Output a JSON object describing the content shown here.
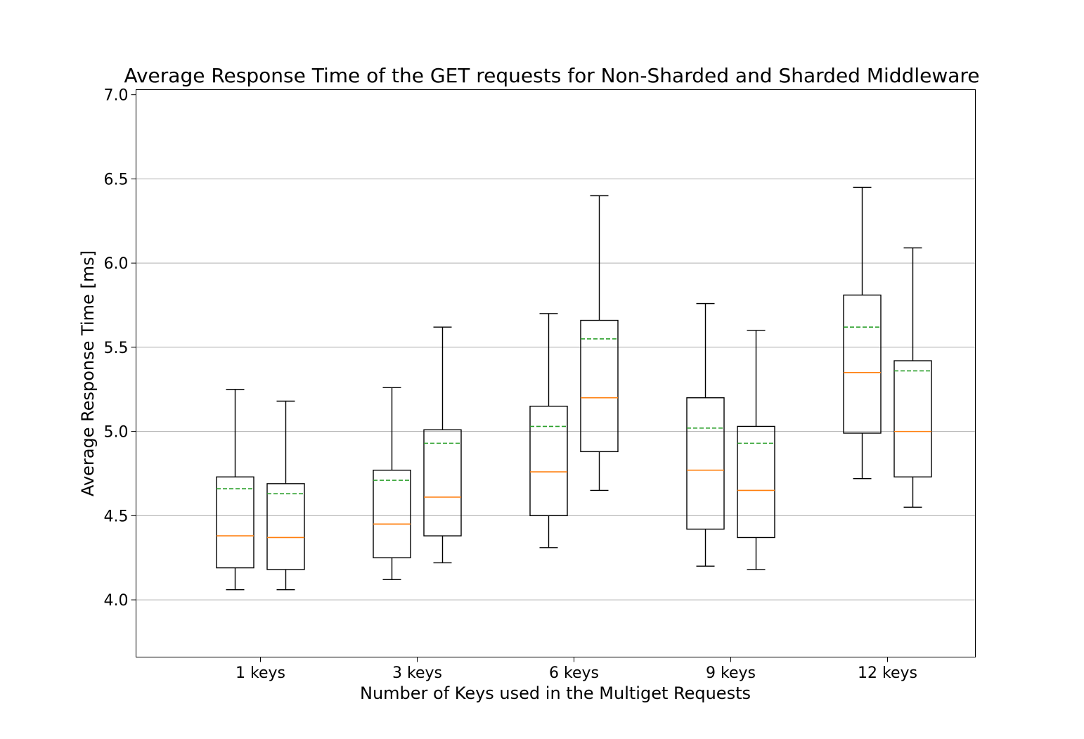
{
  "chart_data": {
    "type": "box",
    "title": "Average Response Time of the GET requests for Non-Sharded and Sharded Middleware",
    "xlabel": "Number of Keys used in the Multiget Requests",
    "ylabel": "Average Response Time [ms]",
    "ylim": [
      3.66,
      7.03
    ],
    "yticks": [
      "4.0",
      "4.5",
      "5.0",
      "5.5",
      "6.0",
      "6.5",
      "7.0"
    ],
    "grid": "horizontal",
    "categories": [
      "1 keys",
      "3 keys",
      "6 keys",
      "9 keys",
      "12 keys"
    ],
    "colors": {
      "median": "#ff7f0e",
      "mean": "#2ca02c",
      "box": "#000000",
      "grid": "#b0b0b0"
    },
    "boxes": [
      {
        "category": "1 keys",
        "group": 0,
        "whislo": 4.06,
        "q1": 4.19,
        "med": 4.38,
        "mean": 4.66,
        "q3": 4.73,
        "whishi": 5.25
      },
      {
        "category": "1 keys",
        "group": 1,
        "whislo": 4.06,
        "q1": 4.18,
        "med": 4.37,
        "mean": 4.63,
        "q3": 4.69,
        "whishi": 5.18
      },
      {
        "category": "3 keys",
        "group": 0,
        "whislo": 4.12,
        "q1": 4.25,
        "med": 4.45,
        "mean": 4.71,
        "q3": 4.77,
        "whishi": 5.26
      },
      {
        "category": "3 keys",
        "group": 1,
        "whislo": 4.22,
        "q1": 4.38,
        "med": 4.61,
        "mean": 4.93,
        "q3": 5.01,
        "whishi": 5.62
      },
      {
        "category": "6 keys",
        "group": 0,
        "whislo": 4.31,
        "q1": 4.5,
        "med": 4.76,
        "mean": 5.03,
        "q3": 5.15,
        "whishi": 5.7
      },
      {
        "category": "6 keys",
        "group": 1,
        "whislo": 4.65,
        "q1": 4.88,
        "med": 5.2,
        "mean": 5.55,
        "q3": 5.66,
        "whishi": 6.4
      },
      {
        "category": "9 keys",
        "group": 0,
        "whislo": 4.2,
        "q1": 4.42,
        "med": 4.77,
        "mean": 5.02,
        "q3": 5.2,
        "whishi": 5.76
      },
      {
        "category": "9 keys",
        "group": 1,
        "whislo": 4.18,
        "q1": 4.37,
        "med": 4.65,
        "mean": 4.93,
        "q3": 5.03,
        "whishi": 5.6
      },
      {
        "category": "12 keys",
        "group": 0,
        "whislo": 4.72,
        "q1": 4.99,
        "med": 5.35,
        "mean": 5.62,
        "q3": 5.81,
        "whishi": 6.45
      },
      {
        "category": "12 keys",
        "group": 1,
        "whislo": 4.55,
        "q1": 4.73,
        "med": 5.0,
        "mean": 5.36,
        "q3": 5.42,
        "whishi": 6.09
      }
    ]
  }
}
